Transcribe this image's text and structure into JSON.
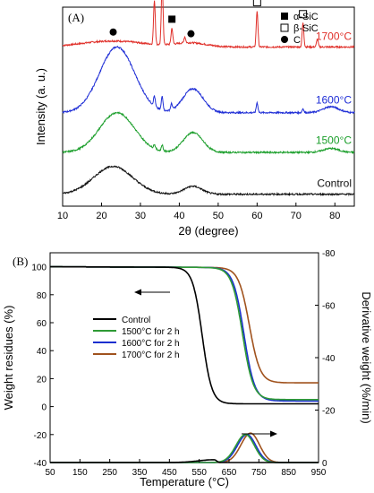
{
  "chart_data": [
    {
      "panel": "(A)",
      "type": "line",
      "xlabel": "2θ (degree)",
      "ylabel": "Intensity (a. u.)",
      "xlim": [
        10,
        85
      ],
      "xticks": [
        10,
        20,
        30,
        40,
        50,
        60,
        70,
        80
      ],
      "yticks": "none",
      "grid": false,
      "legend_position": "top-right",
      "legend": [
        {
          "marker": "filled-square",
          "label": "α-SiC"
        },
        {
          "marker": "open-square",
          "label": "β-SiC"
        },
        {
          "marker": "filled-circle",
          "label": "C"
        }
      ],
      "series": [
        {
          "name": "1700°C",
          "color": "#e0302a",
          "baseline": 0.8,
          "broad_peaks": [
            {
              "center": 23,
              "height": 0.03,
              "width": 8
            },
            {
              "center": 43,
              "height": 0.02,
              "width": 4
            }
          ],
          "sharp_peaks": [
            {
              "x": 33.6,
              "h": 0.22
            },
            {
              "x": 35.6,
              "h": 0.32
            },
            {
              "x": 38.1,
              "h": 0.08
            },
            {
              "x": 41.4,
              "h": 0.03
            },
            {
              "x": 60.0,
              "h": 0.18
            },
            {
              "x": 71.8,
              "h": 0.12
            },
            {
              "x": 75.5,
              "h": 0.04
            }
          ]
        },
        {
          "name": "1600°C",
          "color": "#1f2ed6",
          "baseline": 0.47,
          "broad_peaks": [
            {
              "center": 24,
              "height": 0.33,
              "width": 4.5
            },
            {
              "center": 43.5,
              "height": 0.12,
              "width": 2.6
            },
            {
              "center": 79,
              "height": 0.03,
              "width": 2
            }
          ],
          "sharp_peaks": [
            {
              "x": 33.6,
              "h": 0.05
            },
            {
              "x": 35.6,
              "h": 0.07
            },
            {
              "x": 38.0,
              "h": 0.03
            },
            {
              "x": 60.0,
              "h": 0.05
            },
            {
              "x": 71.8,
              "h": 0.02
            }
          ]
        },
        {
          "name": "1500°C",
          "color": "#1a9e2a",
          "baseline": 0.27,
          "broad_peaks": [
            {
              "center": 24,
              "height": 0.2,
              "width": 4.5
            },
            {
              "center": 43.5,
              "height": 0.1,
              "width": 2.5
            },
            {
              "center": 79,
              "height": 0.02,
              "width": 2
            }
          ],
          "sharp_peaks": [
            {
              "x": 33.6,
              "h": 0.02
            },
            {
              "x": 35.6,
              "h": 0.03
            }
          ]
        },
        {
          "name": "Control",
          "color": "#111111",
          "baseline": 0.06,
          "broad_peaks": [
            {
              "center": 23,
              "height": 0.14,
              "width": 5
            },
            {
              "center": 43.5,
              "height": 0.04,
              "width": 2.3
            }
          ],
          "sharp_peaks": []
        }
      ],
      "phase_markers": [
        {
          "x": 23,
          "marker": "filled-circle"
        },
        {
          "x": 33.6,
          "marker": "filled-square"
        },
        {
          "x": 35.6,
          "marker": "open-square"
        },
        {
          "x": 38.1,
          "marker": "filled-square"
        },
        {
          "x": 43,
          "marker": "filled-circle"
        },
        {
          "x": 60.0,
          "marker": "open-square"
        },
        {
          "x": 71.8,
          "marker": "open-square"
        }
      ]
    },
    {
      "panel": "(B)",
      "type": "line",
      "xlabel": "Temperature (°C)",
      "ylabel": "Weight residues (%)",
      "y2label": "Derivative weight (%/min)",
      "xlim": [
        50,
        950
      ],
      "ylim": [
        -40,
        110
      ],
      "y2lim": [
        0,
        -80
      ],
      "xticks": [
        50,
        150,
        250,
        350,
        450,
        550,
        650,
        750,
        850,
        950
      ],
      "yticks": [
        -40,
        -20,
        0,
        20,
        40,
        60,
        80,
        100
      ],
      "y2ticks": [
        0,
        -20,
        -40,
        -60,
        -80
      ],
      "grid": false,
      "legend_position": "center-left",
      "series": [
        {
          "name": "Control",
          "color": "#000000",
          "tg_onset": 560,
          "tg_width": 16,
          "tg_start": 100,
          "tg_end": 2,
          "dtg_peak_x": 600,
          "dtg_peak_y": -38,
          "dtg_rise": 52,
          "dtg_fall": 8
        },
        {
          "name": "1500°C for 2 h",
          "color": "#2e9a35",
          "tg_onset": 695,
          "tg_width": 18,
          "tg_start": 100,
          "tg_end": 5,
          "dtg_peak_x": 705,
          "dtg_peak_y": -20,
          "dtg_rise": 32,
          "dtg_fall": 30
        },
        {
          "name": "1600°C for 2 h",
          "color": "#1b2fcf",
          "tg_onset": 700,
          "tg_width": 18,
          "tg_start": 100,
          "tg_end": 4,
          "dtg_peak_x": 710,
          "dtg_peak_y": -20,
          "dtg_rise": 32,
          "dtg_fall": 30
        },
        {
          "name": "1700°C for 2 h",
          "color": "#a0521d",
          "tg_onset": 718,
          "tg_width": 18,
          "tg_start": 100,
          "tg_end": 17,
          "dtg_peak_x": 722,
          "dtg_peak_y": -19,
          "dtg_rise": 32,
          "dtg_fall": 30
        }
      ],
      "arrows": [
        {
          "direction": "left",
          "target": "left-axis"
        },
        {
          "direction": "right",
          "target": "right-axis"
        }
      ]
    }
  ]
}
